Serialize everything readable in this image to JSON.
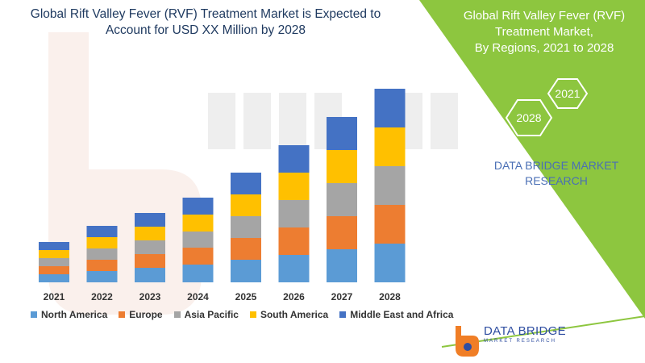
{
  "title": "Global Rift Valley Fever (RVF) Treatment Market is Expected to Account for USD XX Million by 2028",
  "panel": {
    "title_lines": [
      "Global Rift Valley Fever (RVF)",
      "Treatment Market,",
      "By Regions, 2021 to 2028"
    ],
    "hex_labels": [
      "2021",
      "2028"
    ],
    "company_lines": [
      "DATA BRIDGE MARKET",
      "RESEARCH"
    ],
    "logo_text": "DATA BRIDGE",
    "logo_subtext": "MARKET RESEARCH",
    "colors": {
      "green": "#8dc63f",
      "hex_outline": "#ffffff",
      "company_text": "#4a6fb5"
    }
  },
  "chart_data": {
    "type": "bar",
    "stacked": true,
    "categories": [
      "2021",
      "2022",
      "2023",
      "2024",
      "2025",
      "2026",
      "2027",
      "2028"
    ],
    "series": [
      {
        "name": "North America",
        "color": "#5b9bd5",
        "values": [
          10,
          14,
          18,
          22,
          28,
          34,
          41,
          48
        ]
      },
      {
        "name": "Europe",
        "color": "#ed7d31",
        "values": [
          10,
          14,
          17,
          21,
          27,
          34,
          41,
          48
        ]
      },
      {
        "name": "Asia Pacific",
        "color": "#a5a5a5",
        "values": [
          10,
          14,
          17,
          20,
          27,
          34,
          41,
          48
        ]
      },
      {
        "name": "South America",
        "color": "#ffc000",
        "values": [
          10,
          14,
          17,
          21,
          27,
          34,
          41,
          48
        ]
      },
      {
        "name": "Middle East and Africa",
        "color": "#4472c4",
        "values": [
          10,
          14,
          17,
          21,
          27,
          34,
          41,
          48
        ]
      }
    ],
    "legend_position": "bottom",
    "grid": false
  }
}
